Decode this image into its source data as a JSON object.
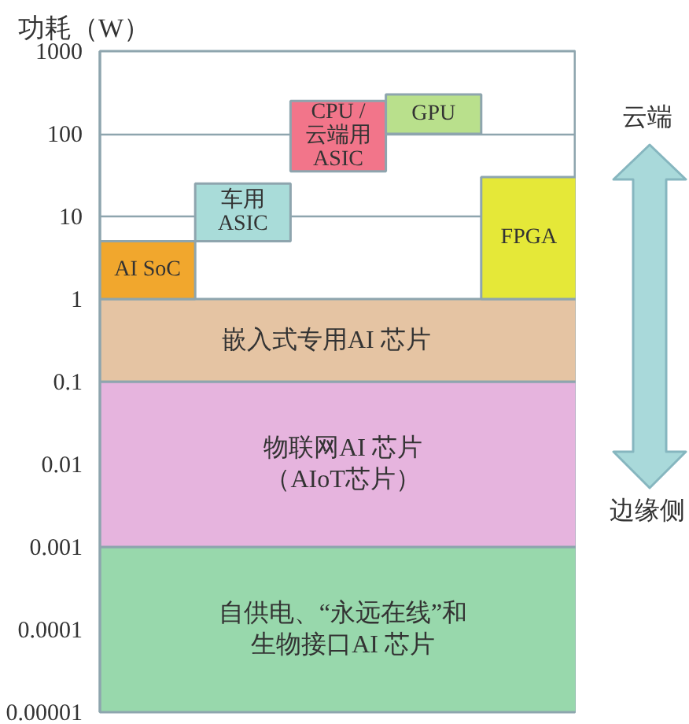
{
  "chart_data": {
    "type": "bar",
    "ylabel": "功耗（W）",
    "categories": [
      null,
      null,
      null,
      null,
      null
    ],
    "base": [
      1,
      5,
      35,
      100,
      1
    ],
    "values": [
      4,
      20,
      215,
      200,
      29
    ],
    "colors": [
      "#f1a72d",
      "#a9dcd9",
      "#f2758a",
      "#b9e08c",
      "#e5e838"
    ],
    "log": true,
    "ylim": [
      1e-05,
      1000
    ],
    "yticks": [
      {
        "value": 1e-05,
        "label": "0.00001"
      },
      0.0001,
      0.001,
      0.01,
      0.1,
      1,
      10,
      100,
      1000
    ],
    "grid": "y",
    "bands": [
      {
        "axis": "y",
        "from": 1e-05,
        "to": 0.001,
        "label": "自供电、“永远在线”和生物接口AI 芯片",
        "color": "#98d8ac"
      },
      {
        "axis": "y",
        "from": 0.001,
        "to": 0.1,
        "label": "物联网AI 芯片（AIoT芯片）",
        "color": "#e6b4de"
      },
      {
        "axis": "y",
        "from": 0.1,
        "to": 1,
        "label": "嵌入式专用AI 芯片",
        "color": "#e5c4a3"
      }
    ],
    "annotations": [
      "AI SoC",
      "车用ASIC",
      "CPU / 云端用ASIC",
      "GPU",
      "FPGA",
      "云端",
      "边缘侧"
    ]
  }
}
